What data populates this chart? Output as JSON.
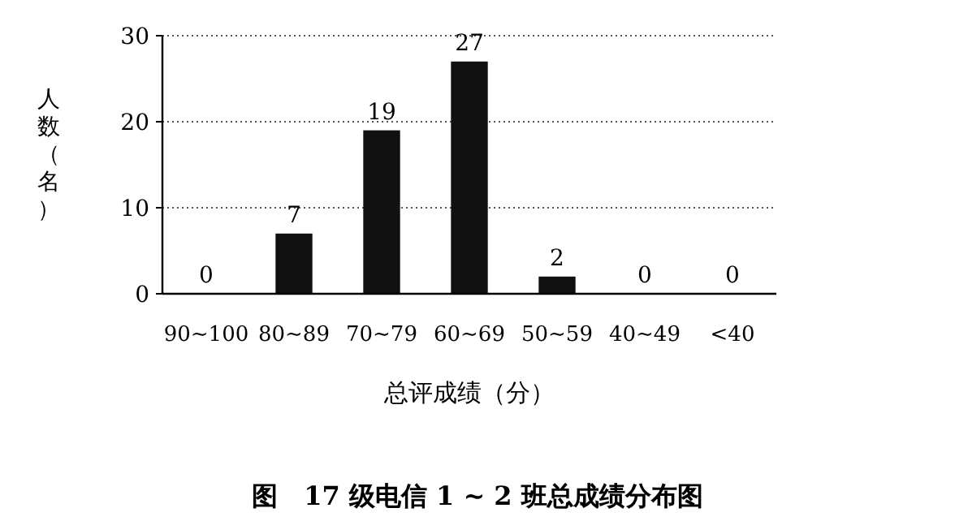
{
  "chart_data": {
    "type": "bar",
    "title": "图　17 级电信 1 ~ 2 班总成绩分布图",
    "xlabel": "总评成绩（分）",
    "ylabel": "人数（名）",
    "categories": [
      "90~100",
      "80~89",
      "70~79",
      "60~69",
      "50~59",
      "40~49",
      "<40"
    ],
    "values": [
      0,
      7,
      19,
      27,
      2,
      0,
      0
    ],
    "color": "#111111",
    "ylim": [
      0,
      30
    ],
    "yticks": [
      0,
      10,
      20,
      30
    ],
    "grid": "y",
    "data_labels": true
  }
}
